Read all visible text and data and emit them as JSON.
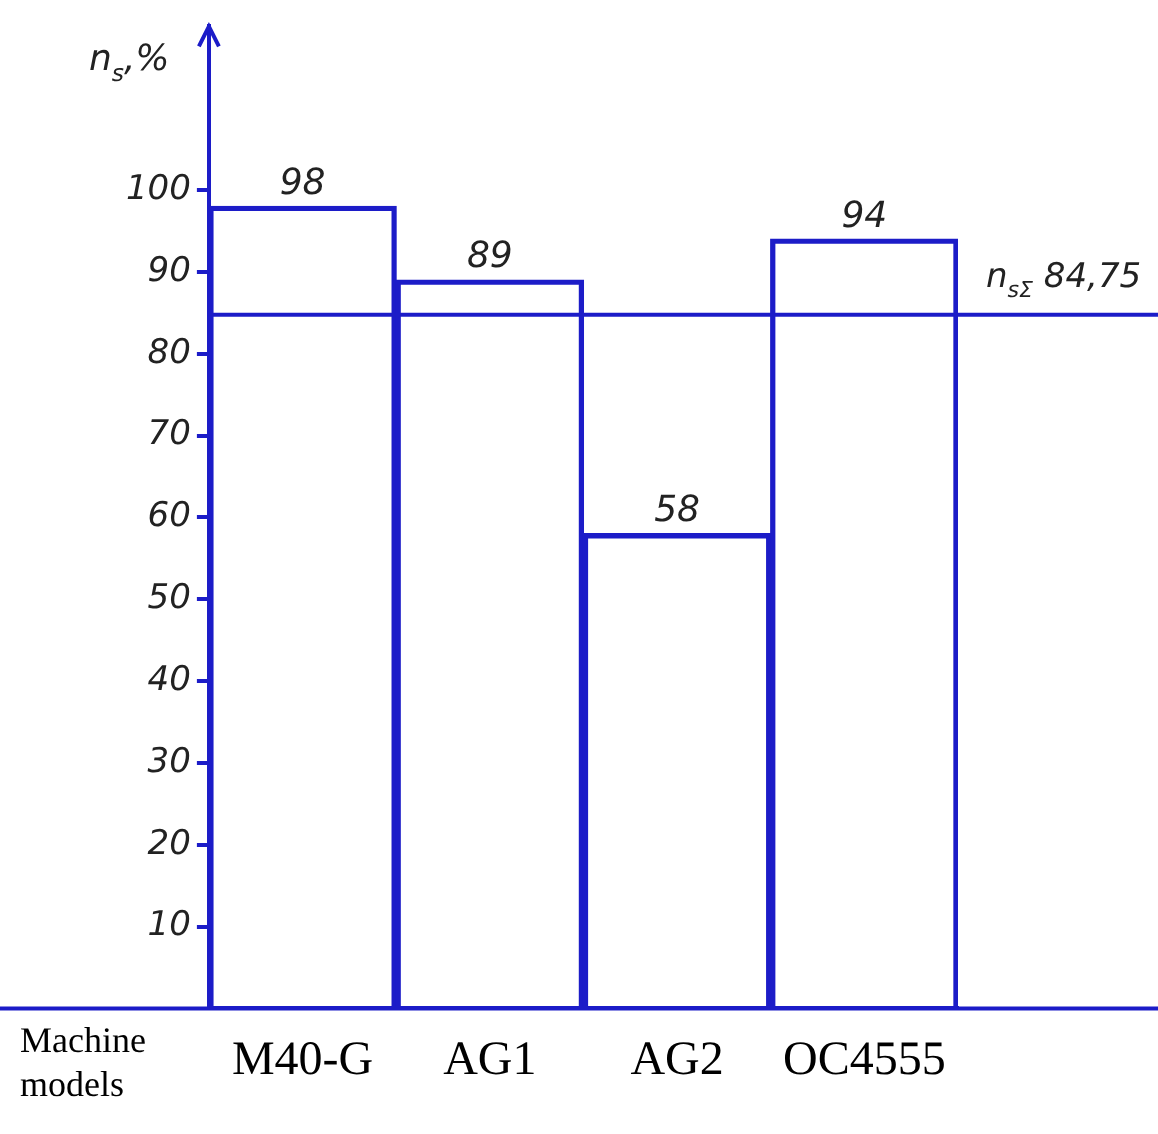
{
  "chart_data": {
    "type": "bar",
    "ylabel": "n$_{s}$,%",
    "xlabel": "Machine models",
    "categories": [
      "M40-G",
      "AG1",
      "AG2",
      "OC4555"
    ],
    "values": [
      98,
      89,
      58,
      94
    ],
    "color": "#1c1cc8",
    "data_labels": true,
    "ylim": [
      0,
      120
    ],
    "yticks": [
      10,
      20,
      30,
      40,
      50,
      60,
      70,
      80,
      90,
      100
    ],
    "grid": false,
    "legend": false,
    "ref_lines": [
      {
        "axis": "y",
        "value": 84.75,
        "label": "n$_{sΣ}$ 84,75"
      }
    ]
  }
}
